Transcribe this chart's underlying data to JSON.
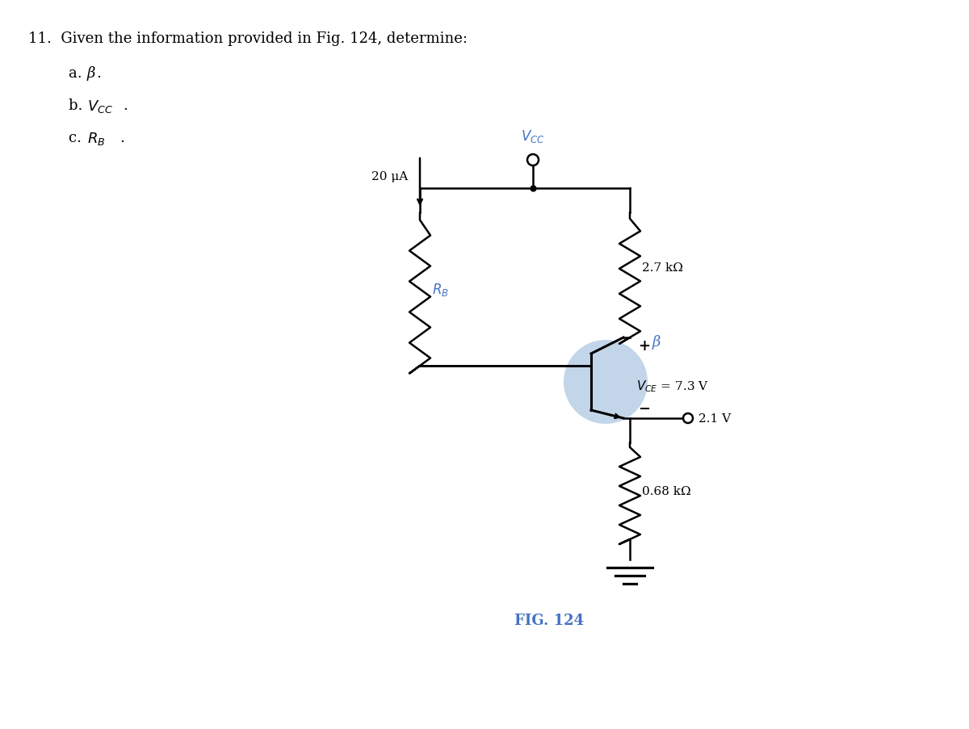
{
  "title_text": "11.  Given the information provided in Fig. 124, determine:",
  "items": [
    "a.  β.",
    "b.  V_{CC}.",
    "c.  R_B."
  ],
  "fig_label": "FIG. 124",
  "vcc_label": "V_{CC}",
  "ib_label": "20 μA",
  "rb_label": "R_B",
  "rc_label": "2.7 kΩ",
  "re_label": "0.68 kΩ",
  "beta_label": "β",
  "vce_label": "V_{CE} = 7.3 V",
  "v21_label": "2.1 V",
  "bg_color": "#ffffff",
  "circuit_color": "#000000",
  "blue_color": "#4472c4",
  "transistor_fill": "#a8c4e0",
  "text_color": "#000000"
}
